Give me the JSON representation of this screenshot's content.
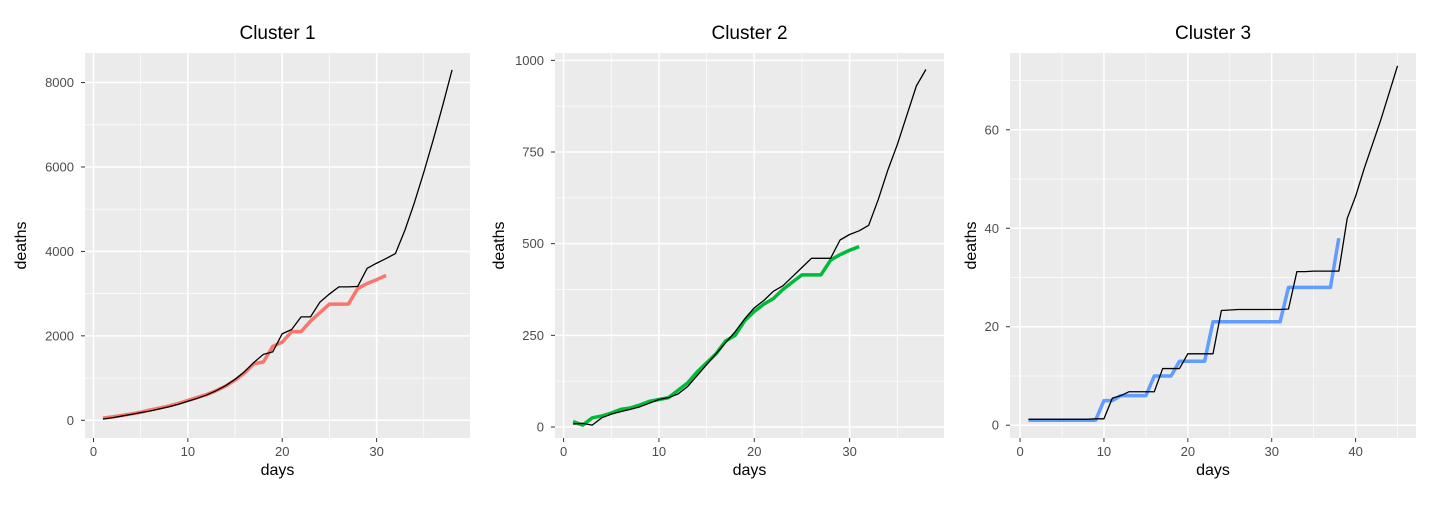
{
  "colors": {
    "panel_bg": "#EBEBEB",
    "grid": "#FFFFFF",
    "model_line": "#000000"
  },
  "chart_data": [
    {
      "type": "line",
      "title": "Cluster 1",
      "xlabel": "days",
      "ylabel": "deaths",
      "xlim": [
        -0.9,
        39.9
      ],
      "ylim": [
        -420,
        8700
      ],
      "xticks": [
        0,
        10,
        20,
        30
      ],
      "yticks": [
        0,
        2000,
        4000,
        6000,
        8000
      ],
      "grid": true,
      "series": [
        {
          "color": "#000000",
          "x": [
            1,
            2,
            3,
            4,
            5,
            6,
            7,
            8,
            9,
            10,
            11,
            12,
            13,
            14,
            15,
            16,
            17,
            18,
            19,
            20,
            21,
            22,
            23,
            24,
            25,
            26,
            27,
            28,
            29,
            30,
            31,
            32,
            33,
            34,
            35,
            36,
            37,
            38
          ],
          "y": [
            30,
            60,
            100,
            140,
            180,
            220,
            270,
            320,
            380,
            450,
            520,
            600,
            700,
            820,
            970,
            1150,
            1370,
            1560,
            1620,
            2050,
            2150,
            2450,
            2450,
            2800,
            2990,
            3160,
            3160,
            3170,
            3600,
            3720,
            3830,
            3950,
            4500,
            5150,
            5870,
            6640,
            7450,
            8300
          ]
        },
        {
          "color": "#F8766D",
          "x": [
            1,
            2,
            3,
            4,
            5,
            6,
            7,
            8,
            9,
            10,
            11,
            12,
            13,
            14,
            15,
            16,
            17,
            18,
            19,
            20,
            21,
            22,
            23,
            24,
            25,
            26,
            27,
            28,
            29,
            30,
            31
          ],
          "y": [
            50,
            80,
            115,
            150,
            190,
            245,
            290,
            340,
            400,
            470,
            540,
            610,
            700,
            810,
            950,
            1120,
            1340,
            1380,
            1750,
            1850,
            2100,
            2100,
            2350,
            2550,
            2750,
            2750,
            2750,
            3120,
            3240,
            3330,
            3430
          ]
        }
      ]
    },
    {
      "type": "line",
      "title": "Cluster 2",
      "xlabel": "days",
      "ylabel": "deaths",
      "xlim": [
        -0.9,
        39.9
      ],
      "ylim": [
        -30,
        1020
      ],
      "xticks": [
        0,
        10,
        20,
        30
      ],
      "yticks": [
        0,
        250,
        500,
        750,
        1000
      ],
      "grid": true,
      "series": [
        {
          "color": "#000000",
          "x": [
            1,
            2,
            3,
            4,
            5,
            6,
            7,
            8,
            9,
            10,
            11,
            12,
            13,
            14,
            15,
            16,
            17,
            18,
            19,
            20,
            21,
            22,
            23,
            24,
            25,
            26,
            27,
            28,
            29,
            30,
            31,
            32,
            33,
            34,
            35,
            36,
            37,
            38
          ],
          "y": [
            8,
            10,
            5,
            25,
            35,
            42,
            48,
            55,
            65,
            75,
            80,
            90,
            110,
            140,
            170,
            200,
            230,
            260,
            295,
            325,
            345,
            370,
            385,
            410,
            435,
            460,
            460,
            460,
            510,
            525,
            535,
            550,
            620,
            700,
            770,
            850,
            930,
            975
          ]
        },
        {
          "color": "#00BA38",
          "x": [
            1,
            2,
            3,
            4,
            5,
            6,
            7,
            8,
            9,
            10,
            11,
            12,
            13,
            14,
            15,
            16,
            17,
            18,
            19,
            20,
            21,
            22,
            23,
            24,
            25,
            26,
            27,
            28,
            29,
            30,
            31
          ],
          "y": [
            15,
            5,
            25,
            30,
            38,
            48,
            52,
            60,
            70,
            75,
            80,
            100,
            120,
            150,
            175,
            200,
            235,
            250,
            290,
            315,
            335,
            350,
            375,
            395,
            415,
            415,
            415,
            455,
            470,
            482,
            492
          ]
        }
      ]
    },
    {
      "type": "line",
      "title": "Cluster 3",
      "xlabel": "days",
      "ylabel": "deaths",
      "xlim": [
        -1.2,
        47.2
      ],
      "ylim": [
        -2.6,
        75.6
      ],
      "xticks": [
        0,
        10,
        20,
        30,
        40
      ],
      "yticks": [
        0,
        20,
        40,
        60
      ],
      "grid": true,
      "series": [
        {
          "color": "#000000",
          "x": [
            1,
            2,
            3,
            4,
            5,
            6,
            7,
            8,
            9,
            10,
            11,
            12,
            13,
            14,
            15,
            16,
            17,
            18,
            19,
            20,
            21,
            22,
            23,
            24,
            25,
            26,
            27,
            28,
            29,
            30,
            31,
            32,
            33,
            34,
            35,
            36,
            37,
            38,
            39,
            40,
            41,
            42,
            43,
            44,
            45
          ],
          "y": [
            1.2,
            1.2,
            1.2,
            1.2,
            1.2,
            1.2,
            1.2,
            1.2,
            1.3,
            1.3,
            5.5,
            6.0,
            6.8,
            6.8,
            6.8,
            6.8,
            11.5,
            11.5,
            11.5,
            14.5,
            14.5,
            14.5,
            14.5,
            23.3,
            23.4,
            23.5,
            23.5,
            23.5,
            23.5,
            23.5,
            23.5,
            23.6,
            31.2,
            31.2,
            31.3,
            31.3,
            31.3,
            31.3,
            42,
            46.5,
            52,
            57,
            62,
            67.5,
            73
          ]
        },
        {
          "color": "#619CFF",
          "x": [
            1,
            2,
            3,
            4,
            5,
            6,
            7,
            8,
            9,
            10,
            11,
            12,
            13,
            14,
            15,
            16,
            17,
            18,
            19,
            20,
            21,
            22,
            23,
            24,
            25,
            26,
            27,
            28,
            29,
            30,
            31,
            32,
            33,
            34,
            35,
            36,
            37,
            38
          ],
          "y": [
            1,
            1,
            1,
            1,
            1,
            1,
            1,
            1,
            1,
            5,
            5,
            6,
            6,
            6,
            6,
            10,
            10,
            10,
            13,
            13,
            13,
            13,
            21,
            21,
            21,
            21,
            21,
            21,
            21,
            21,
            21,
            28,
            28,
            28,
            28,
            28,
            28,
            38
          ]
        }
      ]
    }
  ]
}
